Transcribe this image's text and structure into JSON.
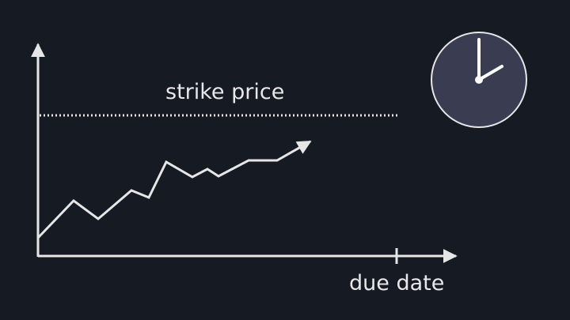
{
  "labels": {
    "strike_price": "strike price",
    "due_date": "due date"
  },
  "icons": {
    "clock": "clock-icon"
  },
  "colors": {
    "background": "#161a23",
    "line": "#e6e6e6",
    "clock_face": "#3a3d52"
  }
}
